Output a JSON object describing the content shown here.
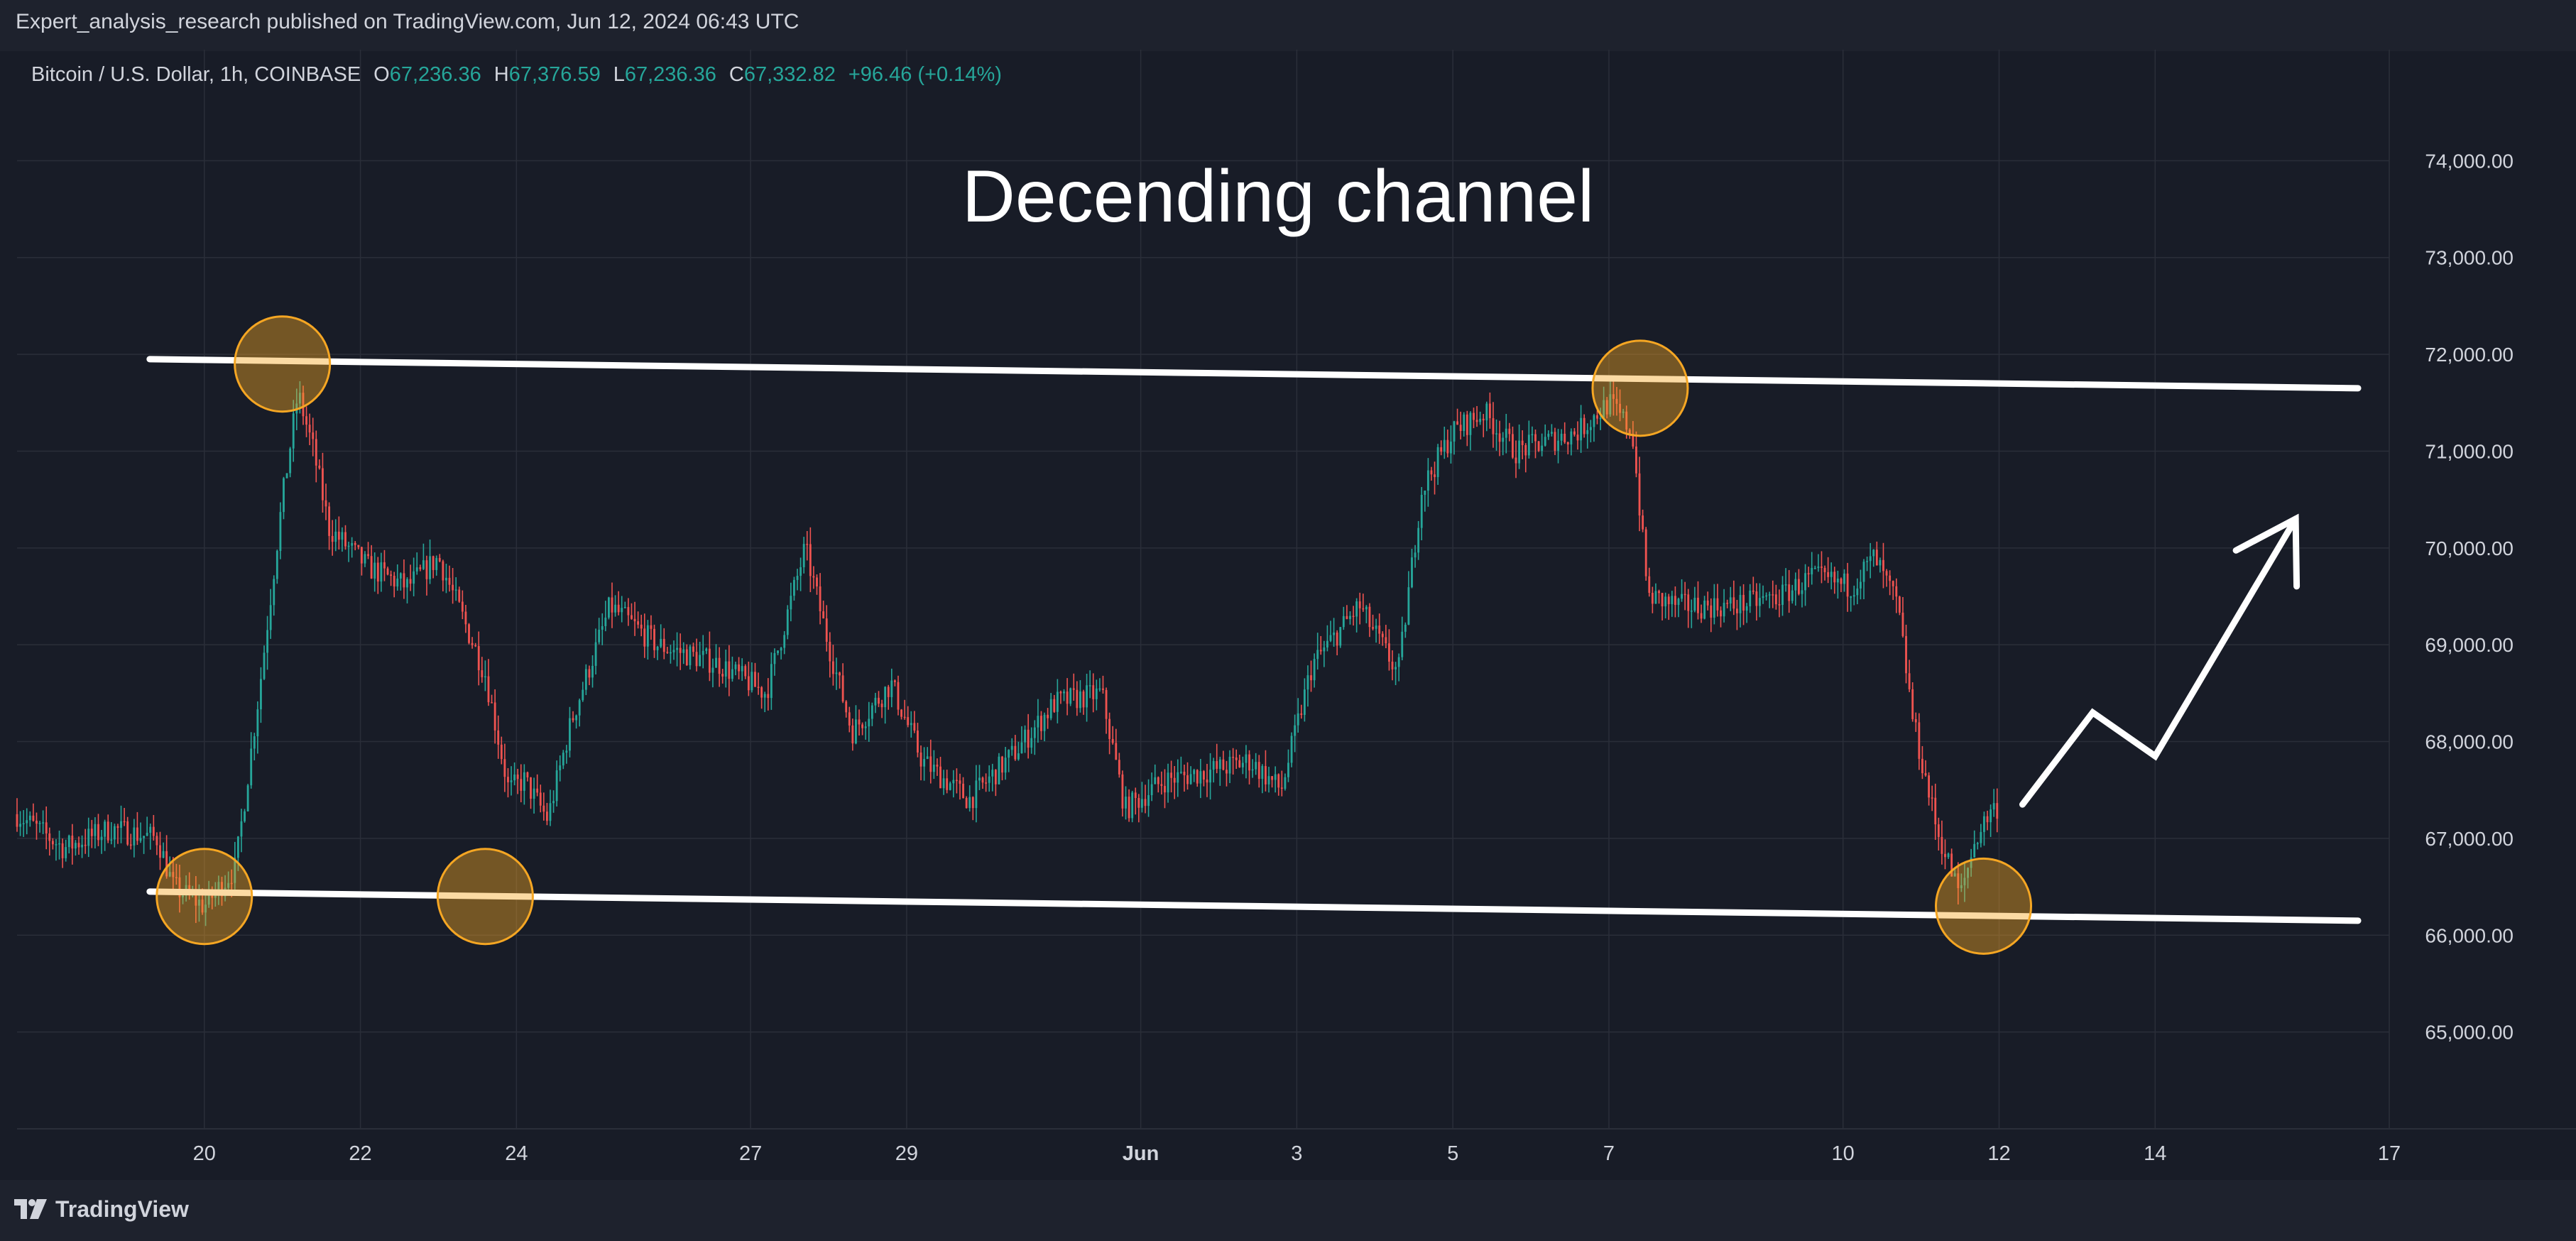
{
  "header": {
    "published": "Expert_analysis_research published on TradingView.com, Jun 12, 2024 06:43 UTC"
  },
  "legend": {
    "symbol": "Bitcoin / U.S. Dollar, 1h, COINBASE",
    "o_label": "O",
    "o_value": "67,236.36",
    "h_label": "H",
    "h_value": "67,376.59",
    "l_label": "L",
    "l_value": "67,236.36",
    "c_label": "C",
    "c_value": "67,332.82",
    "change": "+96.46 (+0.14%)"
  },
  "footer": {
    "brand": "TradingView"
  },
  "colors": {
    "background": "#181c27",
    "panel": "#1e222d",
    "grid": "#2a2e39",
    "text": "#d1d4dc",
    "up": "#26a69a",
    "down": "#ef5350",
    "annotation": "#ffffff",
    "highlight": "#f5a623"
  },
  "chart_data": {
    "type": "candlestick",
    "title": "Decending channel",
    "symbol": "Bitcoin / U.S. Dollar",
    "interval": "1h",
    "exchange": "COINBASE",
    "ylim": [
      64000,
      75000
    ],
    "y_ticks": [
      65000,
      66000,
      67000,
      68000,
      69000,
      70000,
      71000,
      72000,
      73000,
      74000
    ],
    "y_tick_labels": [
      "65,000.00",
      "66,000.00",
      "67,000.00",
      "68,000.00",
      "69,000.00",
      "70,000.00",
      "71,000.00",
      "72,000.00",
      "73,000.00",
      "74,000.00"
    ],
    "xlim": [
      0,
      30.4
    ],
    "x_ticks": [
      2.4,
      4.4,
      6.4,
      9.4,
      11.4,
      14.4,
      16.4,
      18.4,
      20.4,
      23.4,
      25.4,
      27.4,
      30.4
    ],
    "x_tick_labels": [
      "20",
      "22",
      "24",
      "27",
      "29",
      "Jun",
      "3",
      "5",
      "7",
      "10",
      "12",
      "14",
      "17"
    ],
    "grid": true,
    "price_path": [
      [
        0.0,
        67250
      ],
      [
        0.6,
        66900
      ],
      [
        1.2,
        67100
      ],
      [
        1.8,
        67000
      ],
      [
        2.0,
        66500
      ],
      [
        2.4,
        66300
      ],
      [
        2.8,
        66700
      ],
      [
        3.1,
        68500
      ],
      [
        3.4,
        70500
      ],
      [
        3.6,
        71600
      ],
      [
        3.8,
        71000
      ],
      [
        4.0,
        70200
      ],
      [
        4.5,
        69800
      ],
      [
        5.0,
        69600
      ],
      [
        5.4,
        69900
      ],
      [
        6.0,
        68700
      ],
      [
        6.3,
        67500
      ],
      [
        6.5,
        67600
      ],
      [
        6.8,
        67200
      ],
      [
        7.1,
        68200
      ],
      [
        7.6,
        69400
      ],
      [
        8.2,
        69000
      ],
      [
        9.0,
        68800
      ],
      [
        9.6,
        68500
      ],
      [
        10.1,
        70000
      ],
      [
        10.4,
        69000
      ],
      [
        10.7,
        68100
      ],
      [
        11.2,
        68600
      ],
      [
        11.6,
        67800
      ],
      [
        12.2,
        67400
      ],
      [
        12.8,
        67900
      ],
      [
        13.3,
        68400
      ],
      [
        13.9,
        68500
      ],
      [
        14.2,
        67300
      ],
      [
        14.7,
        67600
      ],
      [
        15.3,
        67700
      ],
      [
        15.8,
        67800
      ],
      [
        16.2,
        67500
      ],
      [
        16.6,
        68800
      ],
      [
        17.2,
        69400
      ],
      [
        17.7,
        68700
      ],
      [
        18.0,
        70600
      ],
      [
        18.4,
        71200
      ],
      [
        18.8,
        71400
      ],
      [
        19.2,
        71000
      ],
      [
        19.6,
        71100
      ],
      [
        20.0,
        71200
      ],
      [
        20.4,
        71500
      ],
      [
        20.7,
        71200
      ],
      [
        20.9,
        69500
      ],
      [
        21.3,
        69400
      ],
      [
        22.0,
        69400
      ],
      [
        22.6,
        69500
      ],
      [
        23.0,
        69700
      ],
      [
        23.5,
        69600
      ],
      [
        23.8,
        69900
      ],
      [
        24.1,
        69400
      ],
      [
        24.3,
        68200
      ],
      [
        24.6,
        67100
      ],
      [
        24.9,
        66400
      ],
      [
        25.1,
        67000
      ],
      [
        25.3,
        67300
      ],
      [
        25.4,
        67330
      ]
    ],
    "channel_upper": [
      [
        1.7,
        71950
      ],
      [
        30.0,
        71650
      ]
    ],
    "channel_lower": [
      [
        1.7,
        66450
      ],
      [
        30.0,
        66150
      ]
    ],
    "touch_points": [
      [
        2.4,
        66400
      ],
      [
        3.4,
        71900
      ],
      [
        6.0,
        66400
      ],
      [
        20.8,
        71650
      ],
      [
        25.2,
        66300
      ]
    ],
    "projection_arrow": [
      [
        25.7,
        67350
      ],
      [
        26.6,
        68300
      ],
      [
        27.4,
        67850
      ],
      [
        29.2,
        70300
      ]
    ]
  }
}
